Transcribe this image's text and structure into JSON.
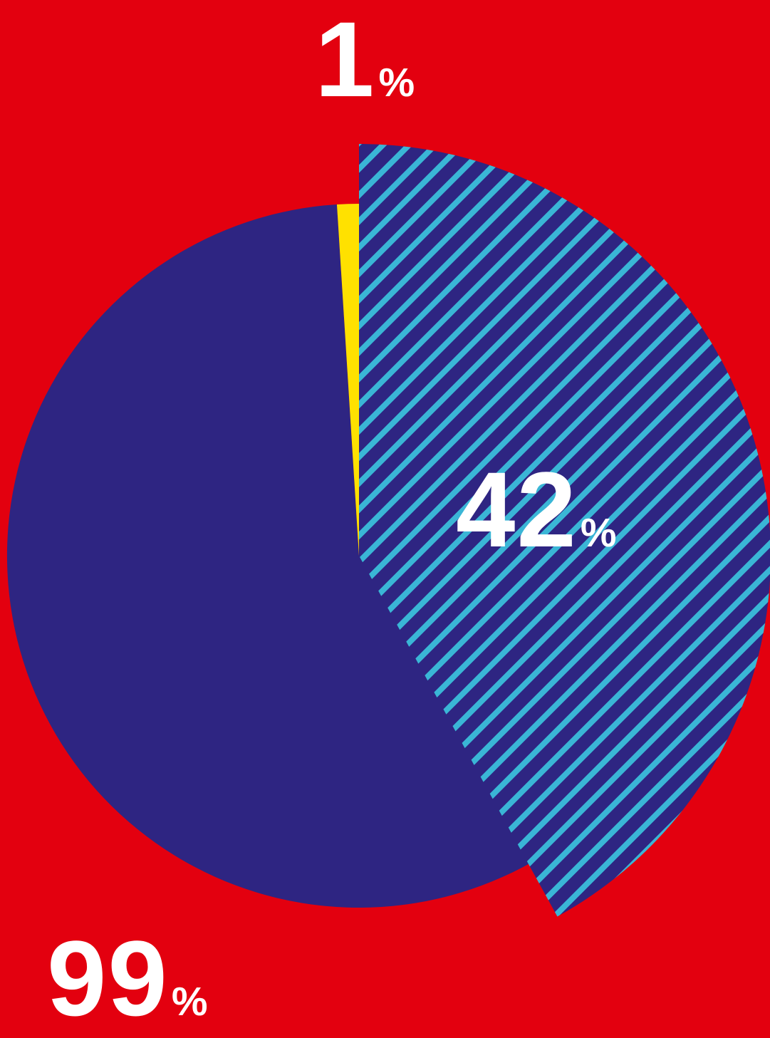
{
  "chart_data": {
    "type": "pie",
    "slices": [
      {
        "label": "1",
        "value": 1,
        "color": "#ffe100",
        "pattern": "none"
      },
      {
        "label": "99",
        "value": 99,
        "color": "#2e2582",
        "pattern": "none"
      },
      {
        "label": "42",
        "value": 42,
        "color": "#2e2582",
        "pattern": "diagonal-stripes",
        "stripe_color": "#3ab6d6",
        "exploded": true
      }
    ],
    "annotations": [
      {
        "number": "1",
        "unit": "%"
      },
      {
        "number": "42",
        "unit": "%"
      },
      {
        "number": "99",
        "unit": "%"
      }
    ]
  },
  "colors": {
    "background": "#e3000f",
    "label_text": "#ffffff"
  }
}
